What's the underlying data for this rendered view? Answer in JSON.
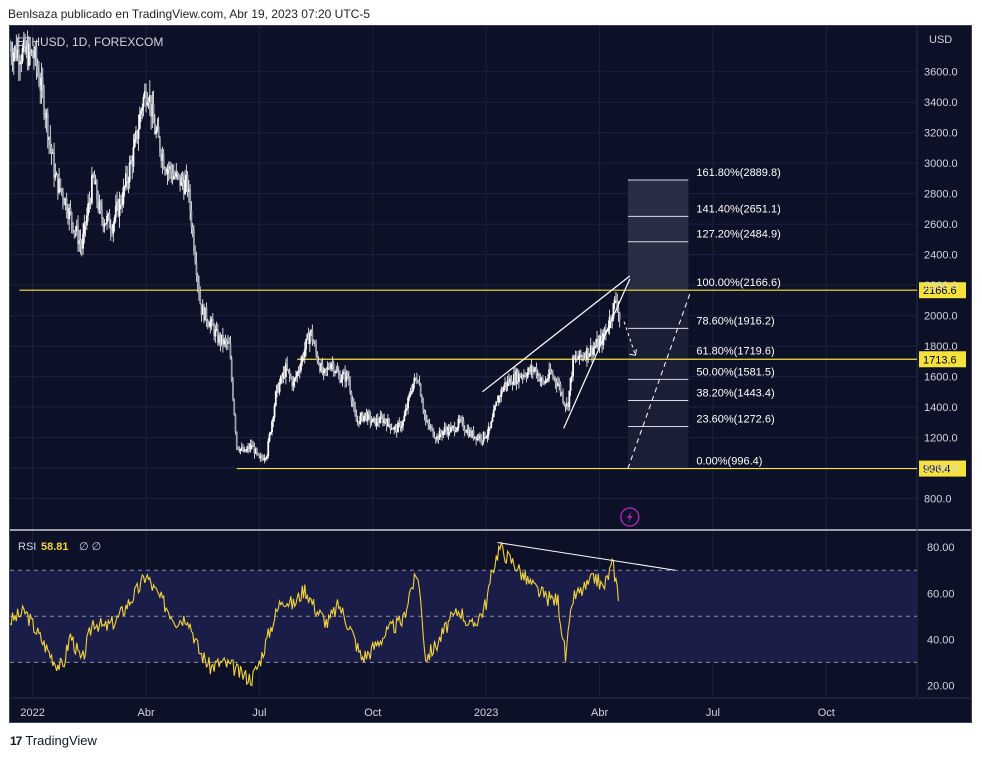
{
  "header": {
    "text": "Benlsaza publicado en TradingView.com, Abr 19, 2023 07:20 UTC-5"
  },
  "footer": {
    "brand": "TradingView",
    "icon": "tradingview-logo-icon"
  },
  "chart_data": [
    {
      "type": "candlestick",
      "title": "ETHUSD, 1D, FOREXCOM",
      "currency": "USD",
      "ylim": [
        600,
        3900
      ],
      "y_ticks": [
        "800.0",
        "1000.0",
        "1200.0",
        "1400.0",
        "1600.0",
        "1800.0",
        "2000.0",
        "2200.0",
        "2400.0",
        "2600.0",
        "2800.0",
        "3000.0",
        "3200.0",
        "3400.0",
        "3600.0"
      ],
      "x_ticks": [
        {
          "label": "2022",
          "month": 0
        },
        {
          "label": "Abr",
          "month": 3
        },
        {
          "label": "Jul",
          "month": 6
        },
        {
          "label": "Oct",
          "month": 9
        },
        {
          "label": "2023",
          "month": 12
        },
        {
          "label": "Abr",
          "month": 15
        },
        {
          "label": "Jul",
          "month": 18
        },
        {
          "label": "Oct",
          "month": 21
        }
      ],
      "xlim_months": [
        -0.6,
        23.4
      ],
      "price_path": [
        [
          -0.6,
          3750
        ],
        [
          0.05,
          3700
        ],
        [
          0.3,
          3400
        ],
        [
          0.6,
          2900
        ],
        [
          0.8,
          2800
        ],
        [
          1.0,
          2650
        ],
        [
          1.3,
          2450
        ],
        [
          1.6,
          2900
        ],
        [
          1.8,
          2650
        ],
        [
          2.1,
          2600
        ],
        [
          2.4,
          2800
        ],
        [
          2.7,
          3100
        ],
        [
          2.9,
          3400
        ],
        [
          3.05,
          3500
        ],
        [
          3.2,
          3250
        ],
        [
          3.5,
          3000
        ],
        [
          3.8,
          2900
        ],
        [
          4.1,
          2850
        ],
        [
          4.3,
          2400
        ],
        [
          4.45,
          2050
        ],
        [
          4.7,
          1950
        ],
        [
          4.9,
          1850
        ],
        [
          5.2,
          1800
        ],
        [
          5.4,
          1150
        ],
        [
          5.6,
          1100
        ],
        [
          5.8,
          1150
        ],
        [
          6.0,
          1050
        ],
        [
          6.2,
          1100
        ],
        [
          6.45,
          1500
        ],
        [
          6.7,
          1650
        ],
        [
          6.9,
          1550
        ],
        [
          7.1,
          1700
        ],
        [
          7.35,
          1900
        ],
        [
          7.5,
          1750
        ],
        [
          7.7,
          1600
        ],
        [
          7.9,
          1700
        ],
        [
          8.1,
          1600
        ],
        [
          8.35,
          1600
        ],
        [
          8.55,
          1300
        ],
        [
          8.8,
          1350
        ],
        [
          9.0,
          1300
        ],
        [
          9.3,
          1320
        ],
        [
          9.6,
          1250
        ],
        [
          9.8,
          1300
        ],
        [
          10.05,
          1550
        ],
        [
          10.2,
          1600
        ],
        [
          10.4,
          1300
        ],
        [
          10.7,
          1200
        ],
        [
          10.9,
          1250
        ],
        [
          11.1,
          1250
        ],
        [
          11.3,
          1300
        ],
        [
          11.6,
          1220
        ],
        [
          11.9,
          1200
        ],
        [
          12.1,
          1250
        ],
        [
          12.3,
          1450
        ],
        [
          12.5,
          1550
        ],
        [
          12.8,
          1600
        ],
        [
          13.0,
          1620
        ],
        [
          13.3,
          1650
        ],
        [
          13.5,
          1550
        ],
        [
          13.7,
          1620
        ],
        [
          13.9,
          1560
        ],
        [
          14.05,
          1450
        ],
        [
          14.15,
          1400
        ],
        [
          14.3,
          1700
        ],
        [
          14.6,
          1750
        ],
        [
          14.9,
          1800
        ],
        [
          15.1,
          1850
        ],
        [
          15.3,
          2000
        ],
        [
          15.45,
          2120
        ],
        [
          15.55,
          1950
        ]
      ],
      "horizontal_levels": [
        {
          "value": 2166.6,
          "label": "2166.6",
          "from_month": -0.35
        },
        {
          "value": 1713.6,
          "label": "1713.6",
          "from_month": 7.0
        },
        {
          "value": 996.4,
          "label": "996.4",
          "from_month": 5.4
        }
      ],
      "fibonacci": {
        "from_month": 15.75,
        "to_month": 17.35,
        "levels": [
          {
            "ratio": 0.0,
            "value": 996.4,
            "label": "0.00%(996.4)"
          },
          {
            "ratio": 0.236,
            "value": 1272.6,
            "label": "23.60%(1272.6)"
          },
          {
            "ratio": 0.382,
            "value": 1443.4,
            "label": "38.20%(1443.4)"
          },
          {
            "ratio": 0.5,
            "value": 1581.5,
            "label": "50.00%(1581.5)"
          },
          {
            "ratio": 0.618,
            "value": 1719.6,
            "label": "61.80%(1719.6)"
          },
          {
            "ratio": 0.786,
            "value": 1916.2,
            "label": "78.60%(1916.2)"
          },
          {
            "ratio": 1.0,
            "value": 2166.6,
            "label": "100.00%(2166.6)"
          },
          {
            "ratio": 1.272,
            "value": 2484.9,
            "label": "127.20%(2484.9)"
          },
          {
            "ratio": 1.414,
            "value": 2651.1,
            "label": "141.40%(2651.1)"
          },
          {
            "ratio": 1.618,
            "value": 2889.8,
            "label": "161.80%(2889.8)"
          }
        ]
      },
      "wedge": {
        "upper": [
          [
            11.9,
            1500
          ],
          [
            15.8,
            2260
          ]
        ],
        "lower": [
          [
            14.05,
            1260
          ],
          [
            15.8,
            2240
          ]
        ]
      },
      "projection_arrow": [
        [
          15.65,
          1960
        ],
        [
          15.95,
          1740
        ]
      ],
      "dashed_target_line": [
        [
          15.75,
          996.4
        ],
        [
          17.4,
          2150
        ]
      ]
    },
    {
      "type": "line",
      "title": "RSI",
      "value_label": "58.81",
      "suffix": "∅ ∅",
      "ylim": [
        15,
        87
      ],
      "y_ticks": [
        "20.00",
        "40.00",
        "60.00",
        "80.00"
      ],
      "bands": [
        30,
        50,
        70
      ],
      "rsi_path": [
        [
          -0.6,
          48
        ],
        [
          -0.2,
          52
        ],
        [
          0.3,
          38
        ],
        [
          0.6,
          30
        ],
        [
          0.8,
          28
        ],
        [
          1.0,
          42
        ],
        [
          1.3,
          30
        ],
        [
          1.6,
          48
        ],
        [
          1.9,
          45
        ],
        [
          2.2,
          48
        ],
        [
          2.5,
          55
        ],
        [
          2.8,
          62
        ],
        [
          3.0,
          68
        ],
        [
          3.2,
          62
        ],
        [
          3.5,
          55
        ],
        [
          3.8,
          48
        ],
        [
          4.1,
          50
        ],
        [
          4.4,
          35
        ],
        [
          4.7,
          28
        ],
        [
          5.0,
          30
        ],
        [
          5.3,
          28
        ],
        [
          5.5,
          25
        ],
        [
          5.8,
          23
        ],
        [
          6.0,
          30
        ],
        [
          6.3,
          45
        ],
        [
          6.6,
          58
        ],
        [
          6.9,
          55
        ],
        [
          7.2,
          62
        ],
        [
          7.5,
          53
        ],
        [
          7.8,
          47
        ],
        [
          8.1,
          55
        ],
        [
          8.4,
          45
        ],
        [
          8.7,
          32
        ],
        [
          8.9,
          34
        ],
        [
          9.2,
          40
        ],
        [
          9.5,
          45
        ],
        [
          9.8,
          48
        ],
        [
          10.0,
          62
        ],
        [
          10.2,
          68
        ],
        [
          10.4,
          32
        ],
        [
          10.7,
          38
        ],
        [
          11.0,
          47
        ],
        [
          11.3,
          53
        ],
        [
          11.6,
          45
        ],
        [
          11.9,
          52
        ],
        [
          12.0,
          56
        ],
        [
          12.2,
          72
        ],
        [
          12.35,
          80
        ],
        [
          12.55,
          76
        ],
        [
          12.8,
          72
        ],
        [
          13.0,
          67
        ],
        [
          13.3,
          62
        ],
        [
          13.6,
          58
        ],
        [
          13.9,
          57
        ],
        [
          14.1,
          32
        ],
        [
          14.3,
          58
        ],
        [
          14.6,
          62
        ],
        [
          14.9,
          67
        ],
        [
          15.1,
          62
        ],
        [
          15.35,
          73
        ],
        [
          15.5,
          59
        ]
      ],
      "divergence_line": [
        [
          12.3,
          82
        ],
        [
          17.0,
          70
        ]
      ]
    }
  ],
  "colors": {
    "background": "#0c1127",
    "up": "#ffffff",
    "level": "#f5e23c",
    "rsi_line": "#f0d33c",
    "rsi_band": "#1a1d48",
    "axis_text": "#d1d4dc",
    "grid": "#1b2140",
    "fib_zone": "#1a1f36",
    "fib_top_zone": "#282e44",
    "lightning": "#9c27b0"
  }
}
